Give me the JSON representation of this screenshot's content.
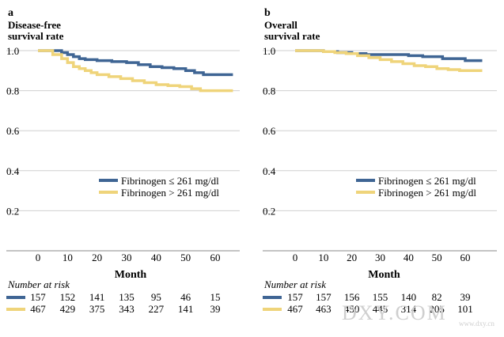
{
  "colors": {
    "low": "#3f6594",
    "high": "#efd47a",
    "grid": "#cfcfcf"
  },
  "watermark": {
    "main": "DXY.COM",
    "sub": "www.dxy.cn"
  },
  "chart_data": [
    {
      "panel": "a",
      "type": "line",
      "title_lines": [
        "Disease-free",
        "survival rate"
      ],
      "xlabel": "Month",
      "xticks": [
        0,
        10,
        20,
        30,
        40,
        50,
        60
      ],
      "yticks": [
        "0.2",
        "0.4",
        "0.6",
        "0.8",
        "1.0"
      ],
      "xlim": [
        -10,
        66
      ],
      "ylim": [
        0,
        1.03
      ],
      "legend_position": "lower-right",
      "series": [
        {
          "name": "Fibrinogen ≤ 261 mg/dl",
          "color": "#3f6594",
          "x": [
            0,
            3,
            8,
            10,
            12,
            14,
            16,
            20,
            25,
            30,
            34,
            38,
            42,
            46,
            50,
            53,
            56,
            60,
            66
          ],
          "y": [
            1.0,
            1.0,
            0.99,
            0.98,
            0.97,
            0.96,
            0.955,
            0.95,
            0.945,
            0.94,
            0.93,
            0.92,
            0.915,
            0.91,
            0.9,
            0.89,
            0.88,
            0.88,
            0.88
          ]
        },
        {
          "name": "Fibrinogen > 261 mg/dl",
          "color": "#efd47a",
          "x": [
            0,
            3,
            5,
            8,
            10,
            12,
            14,
            16,
            18,
            20,
            24,
            28,
            32,
            36,
            40,
            44,
            48,
            52,
            55,
            60,
            66
          ],
          "y": [
            1.0,
            1.0,
            0.98,
            0.96,
            0.94,
            0.92,
            0.91,
            0.9,
            0.89,
            0.88,
            0.87,
            0.86,
            0.85,
            0.84,
            0.83,
            0.825,
            0.82,
            0.81,
            0.8,
            0.8,
            0.8
          ]
        }
      ],
      "risk": {
        "title": "Number at risk",
        "low": [
          "157",
          "152",
          "141",
          "135",
          "95",
          "46",
          "15"
        ],
        "high": [
          "467",
          "429",
          "375",
          "343",
          "227",
          "141",
          "39"
        ]
      }
    },
    {
      "panel": "b",
      "type": "line",
      "title_lines": [
        "Overall",
        "survival rate"
      ],
      "xlabel": "Month",
      "xticks": [
        0,
        10,
        20,
        30,
        40,
        50,
        60
      ],
      "yticks": [
        "0.2",
        "0.4",
        "0.6",
        "0.8",
        "1.0"
      ],
      "xlim": [
        -10,
        66
      ],
      "ylim": [
        0,
        1.03
      ],
      "legend_position": "lower-right",
      "series": [
        {
          "name": "Fibrinogen ≤ 261 mg/dl",
          "color": "#3f6594",
          "x": [
            0,
            5,
            10,
            15,
            20,
            25,
            30,
            35,
            40,
            45,
            48,
            52,
            56,
            60,
            66
          ],
          "y": [
            1.0,
            1.0,
            0.995,
            0.99,
            0.985,
            0.98,
            0.98,
            0.98,
            0.975,
            0.97,
            0.97,
            0.96,
            0.96,
            0.95,
            0.95
          ]
        },
        {
          "name": "Fibrinogen > 261 mg/dl",
          "color": "#efd47a",
          "x": [
            0,
            5,
            10,
            14,
            18,
            22,
            26,
            30,
            34,
            38,
            42,
            46,
            50,
            54,
            58,
            62,
            66
          ],
          "y": [
            1.0,
            1.0,
            0.995,
            0.99,
            0.985,
            0.975,
            0.965,
            0.955,
            0.945,
            0.935,
            0.925,
            0.92,
            0.91,
            0.905,
            0.9,
            0.9,
            0.9
          ]
        }
      ],
      "risk": {
        "title": "Number at risk",
        "low": [
          "157",
          "157",
          "156",
          "155",
          "140",
          "82",
          "39"
        ],
        "high": [
          "467",
          "463",
          "450",
          "445",
          "314",
          "205",
          "101"
        ]
      }
    }
  ]
}
